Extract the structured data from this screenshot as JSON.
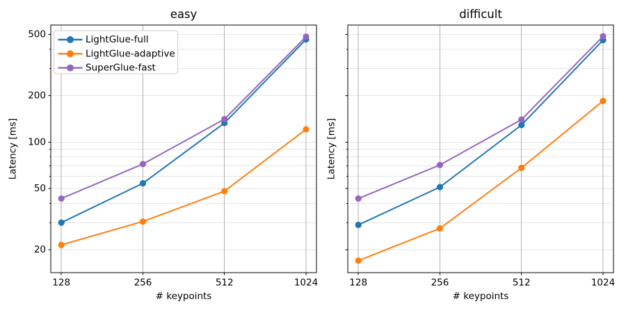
{
  "figure": {
    "background": "#ffffff",
    "grid_color_vertical": "#b0b0b0",
    "grid_color_horizontal": "#e6e6e6",
    "spine_color": "#000000",
    "text_color": "#000000",
    "legend_border_color": "#cccccc"
  },
  "chart_data": [
    {
      "type": "line",
      "title": "easy",
      "xlabel": "# keypoints",
      "ylabel": "Latency [ms]",
      "xscale": "log2",
      "yscale": "log10",
      "x": [
        128,
        256,
        512,
        1024
      ],
      "x_tick_labels": [
        "128",
        "256",
        "512",
        "1024"
      ],
      "ylim": [
        14.2,
        575
      ],
      "y_ticks": [
        20,
        50,
        100,
        200,
        500
      ],
      "y_tick_labels": [
        "20",
        "50",
        "100",
        "200",
        "500"
      ],
      "y_minor_ticks": [
        30,
        40,
        60,
        70,
        80,
        90,
        300,
        400
      ],
      "y_show_tick_labels": true,
      "grid": true,
      "series": [
        {
          "name": "LightGlue-full",
          "color": "#1f77b4",
          "values": [
            30,
            54,
            133,
            464
          ]
        },
        {
          "name": "LightGlue-adaptive",
          "color": "#ff7f0e",
          "values": [
            21.5,
            30.5,
            48,
            121
          ]
        },
        {
          "name": "SuperGlue-fast",
          "color": "#9467bd",
          "values": [
            43,
            72,
            141,
            483
          ]
        }
      ],
      "legend": {
        "visible": true,
        "position": "upper left",
        "labels": [
          "LightGlue-full",
          "LightGlue-adaptive",
          "SuperGlue-fast"
        ]
      }
    },
    {
      "type": "line",
      "title": "difficult",
      "xlabel": "# keypoints",
      "ylabel": "Latency [ms]",
      "xscale": "log2",
      "yscale": "log10",
      "x": [
        128,
        256,
        512,
        1024
      ],
      "x_tick_labels": [
        "128",
        "256",
        "512",
        "1024"
      ],
      "ylim": [
        14.2,
        575
      ],
      "y_ticks": [
        20,
        50,
        100,
        200,
        500
      ],
      "y_tick_labels": [],
      "y_minor_ticks": [
        30,
        40,
        60,
        70,
        80,
        90,
        300,
        400
      ],
      "y_show_tick_labels": false,
      "grid": true,
      "series": [
        {
          "name": "LightGlue-full",
          "color": "#1f77b4",
          "values": [
            29,
            51,
            129,
            459
          ]
        },
        {
          "name": "LightGlue-adaptive",
          "color": "#ff7f0e",
          "values": [
            17,
            27.5,
            68,
            185
          ]
        },
        {
          "name": "SuperGlue-fast",
          "color": "#9467bd",
          "values": [
            43,
            71,
            140,
            486
          ]
        }
      ],
      "legend": {
        "visible": false,
        "position": "",
        "labels": []
      }
    }
  ]
}
